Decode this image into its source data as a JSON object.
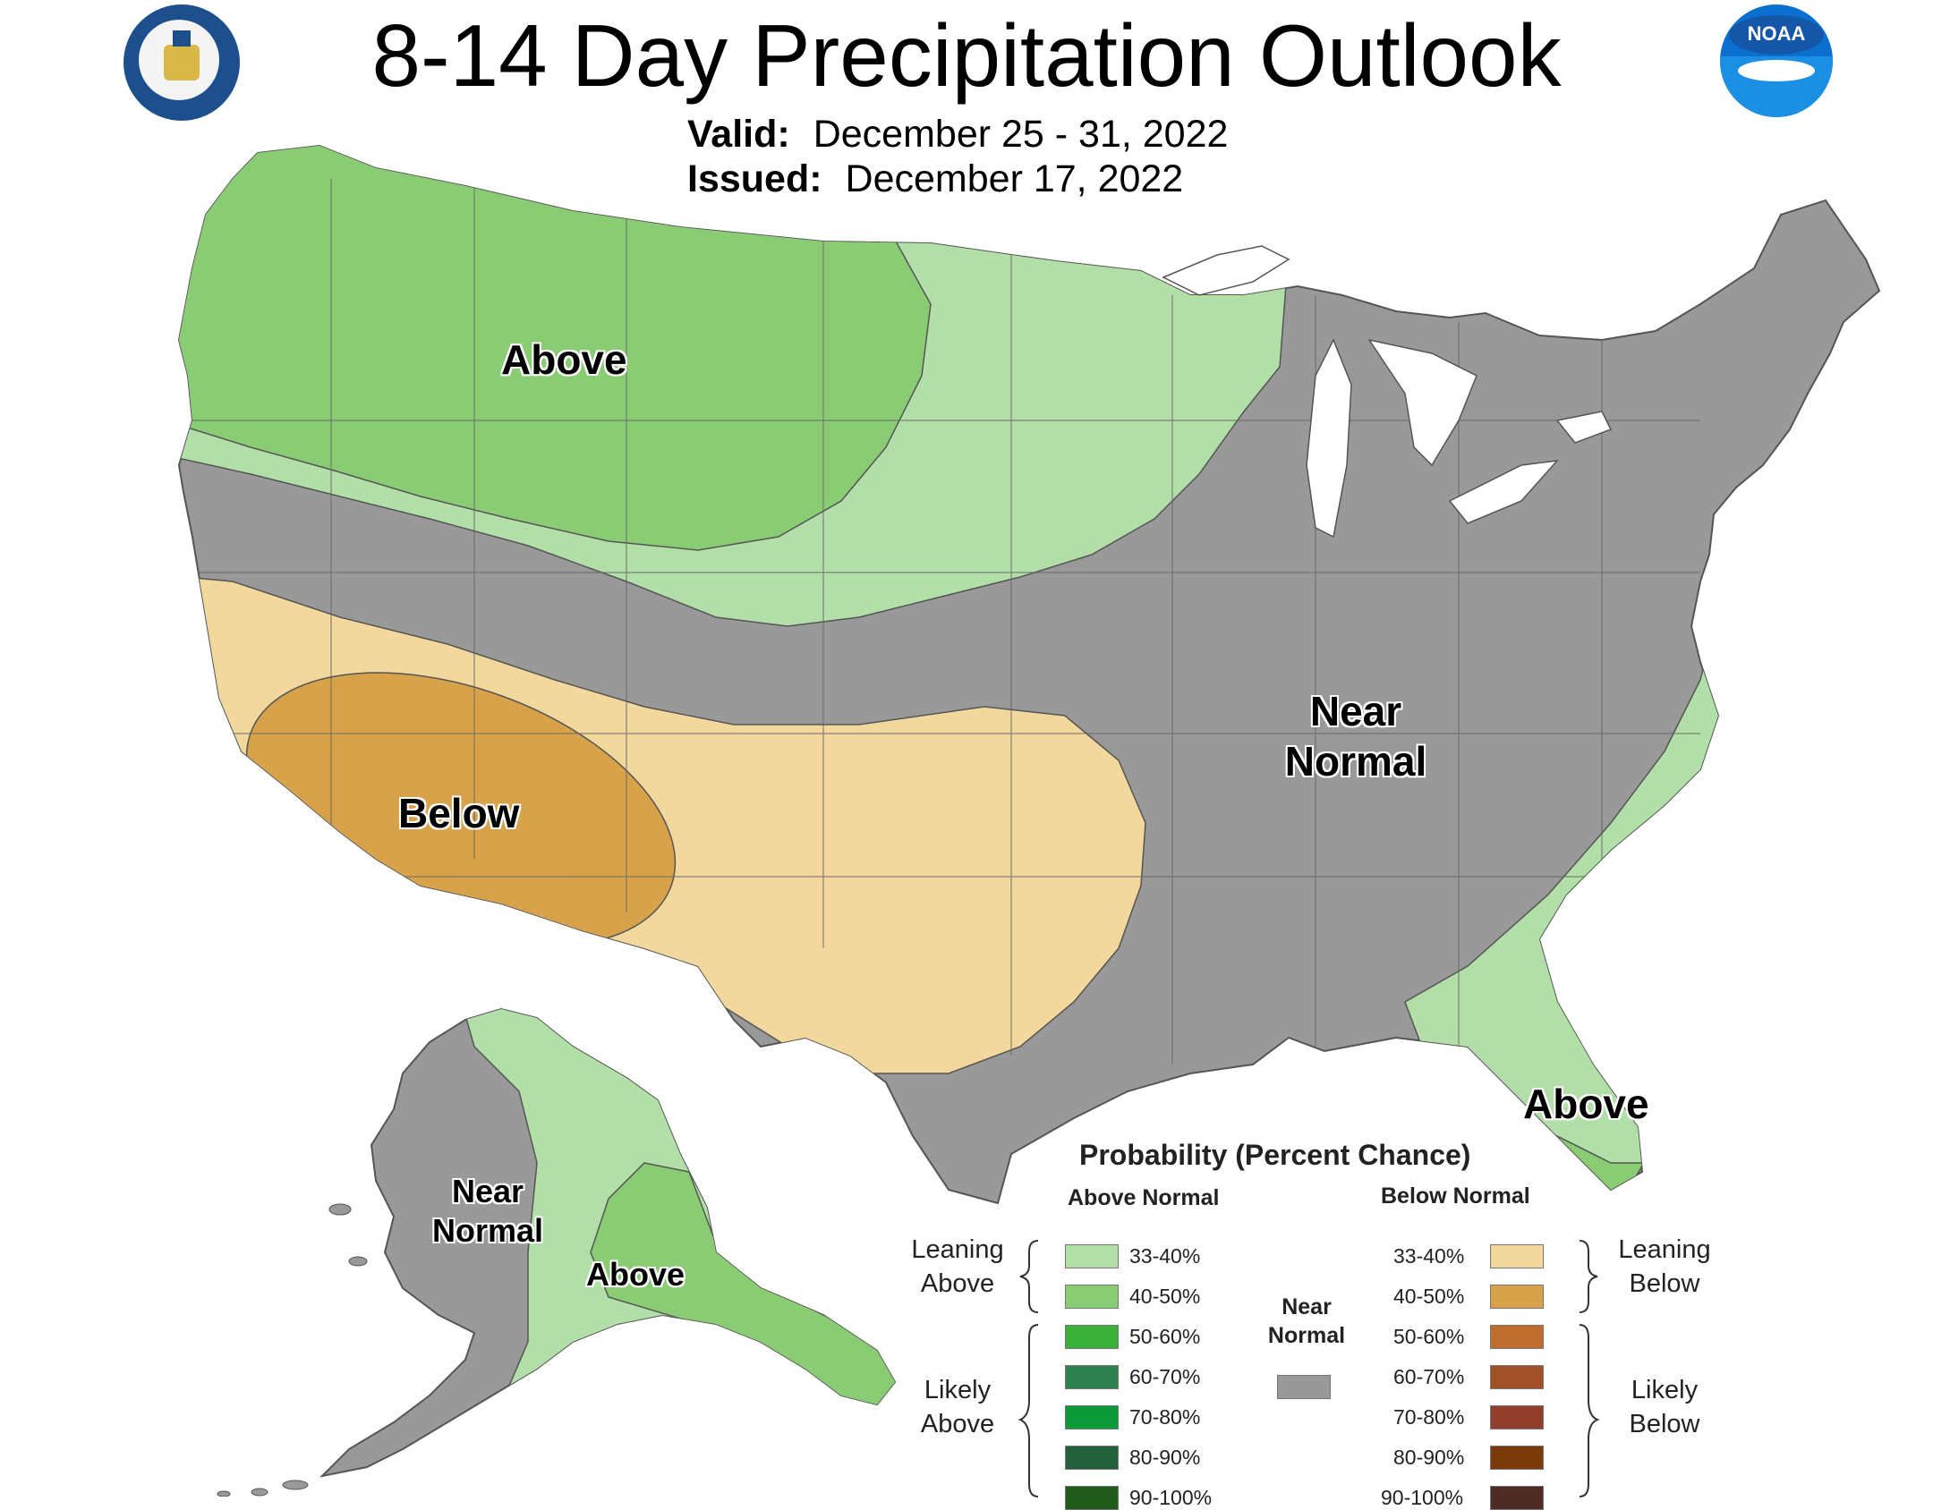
{
  "header": {
    "title": "8-14 Day Precipitation Outlook",
    "valid_label": "Valid:",
    "valid_value": "December 25 - 31, 2022",
    "issued_label": "Issued:",
    "issued_value": "December 17, 2022"
  },
  "logos": {
    "left_icon": "department-of-commerce-seal",
    "right_icon": "noaa-logo",
    "noaa_text": "NOAA"
  },
  "regions": {
    "above_northwest": "Above",
    "below_southwest": "Below",
    "near_normal_east": "Near Normal",
    "above_florida": "Above",
    "alaska_near_normal": "Near Normal",
    "alaska_above": "Above"
  },
  "legend": {
    "title": "Probability (Percent Chance)",
    "above_header": "Above Normal",
    "below_header": "Below Normal",
    "near_normal_label": "Near Normal",
    "leaning_above": "Leaning Above",
    "likely_above": "Likely Above",
    "leaning_below": "Leaning Below",
    "likely_below": "Likely Below",
    "above_ranges": [
      "33-40%",
      "40-50%",
      "50-60%",
      "60-70%",
      "70-80%",
      "80-90%",
      "90-100%"
    ],
    "below_ranges": [
      "33-40%",
      "40-50%",
      "50-60%",
      "60-70%",
      "70-80%",
      "80-90%",
      "90-100%"
    ],
    "above_colors": [
      "#b2dfa8",
      "#8acc74",
      "#3bb13b",
      "#2e7f52",
      "#0a9a3a",
      "#235f3a",
      "#205b1c"
    ],
    "below_colors": [
      "#f2d89c",
      "#d8a24a",
      "#bf6d2e",
      "#a05027",
      "#913f2c",
      "#7a3a0a",
      "#4e2b24"
    ],
    "near_normal_color": "#999999"
  }
}
